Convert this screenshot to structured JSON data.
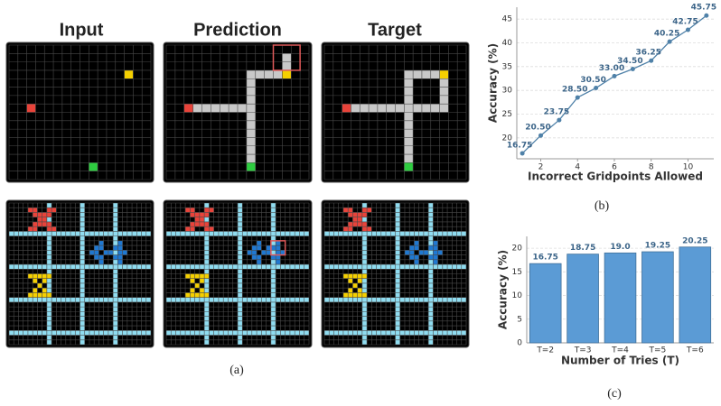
{
  "figure": {
    "column_titles": [
      "Input",
      "Prediction",
      "Target"
    ],
    "captions": [
      "(a)",
      "(b)",
      "(c)"
    ]
  },
  "chart_data": [
    {
      "type": "line",
      "x_label": "Incorrect Gridpoints Allowed",
      "y_label": "Accuracy (%)",
      "x": [
        1,
        2,
        3,
        4,
        5,
        6,
        7,
        8,
        9,
        10,
        11
      ],
      "values": [
        16.75,
        20.5,
        23.75,
        28.5,
        30.5,
        33.0,
        34.5,
        36.25,
        40.25,
        42.75,
        45.75
      ],
      "value_labels": [
        "16.75",
        "20.50",
        "23.75",
        "28.50",
        "30.50",
        "33.00",
        "34.50",
        "36.25",
        "40.25",
        "42.75",
        "45.75"
      ],
      "color": "#4f81a8",
      "xlim": [
        0.7,
        11.4
      ],
      "ylim": [
        15.6,
        47.5
      ],
      "xticks": [
        2,
        4,
        6,
        8,
        10
      ],
      "yticks": [
        20,
        25,
        30,
        35,
        40,
        45
      ],
      "grid": true
    },
    {
      "type": "bar",
      "x_label": "Number of Tries (T)",
      "y_label": "Accuracy (%)",
      "categories": [
        "T=2",
        "T=3",
        "T=4",
        "T=5",
        "T=6"
      ],
      "values": [
        16.75,
        18.75,
        19.0,
        19.25,
        20.25
      ],
      "value_labels": [
        "16.75",
        "18.75",
        "19.0",
        "19.25",
        "20.25"
      ],
      "color": "#5b9bd5",
      "ylim": [
        0,
        22.5
      ],
      "yticks": [
        0,
        5,
        10,
        15,
        20
      ],
      "grid": true
    }
  ]
}
